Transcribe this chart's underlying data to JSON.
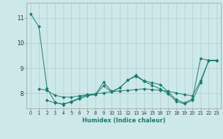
{
  "xlabel": "Humidex (Indice chaleur)",
  "bg_color": "#cce8e8",
  "grid_color": "#b0cccc",
  "line_color": "#1a7a6e",
  "xlim": [
    -0.5,
    23.5
  ],
  "ylim": [
    7.4,
    11.6
  ],
  "yticks": [
    8,
    9,
    10,
    11
  ],
  "xticks": [
    0,
    1,
    2,
    3,
    4,
    5,
    6,
    7,
    8,
    9,
    10,
    11,
    12,
    13,
    14,
    15,
    16,
    17,
    18,
    19,
    20,
    21,
    22,
    23
  ],
  "series": [
    {
      "x": [
        0,
        1,
        2,
        3,
        4,
        5,
        6,
        7,
        8,
        9,
        10,
        11,
        12,
        13,
        14,
        15,
        16,
        17,
        18,
        19,
        20,
        21,
        22,
        23
      ],
      "y": [
        11.15,
        10.65,
        8.2,
        7.65,
        7.55,
        7.68,
        7.82,
        7.95,
        7.95,
        8.45,
        8.08,
        8.22,
        8.52,
        8.72,
        8.5,
        8.42,
        8.35,
        8.05,
        7.75,
        7.62,
        7.78,
        9.38,
        9.32,
        9.32
      ]
    },
    {
      "x": [
        1,
        2,
        3,
        4,
        5,
        6,
        7,
        8,
        9,
        10,
        11,
        12,
        13,
        14,
        15,
        16,
        17,
        18,
        19,
        20,
        21,
        22,
        23
      ],
      "y": [
        8.18,
        8.12,
        7.92,
        7.85,
        7.85,
        7.9,
        7.95,
        7.98,
        8.02,
        8.06,
        8.1,
        8.12,
        8.15,
        8.18,
        8.15,
        8.12,
        8.08,
        8.02,
        7.95,
        7.9,
        8.5,
        9.3,
        9.3
      ]
    },
    {
      "x": [
        2,
        3,
        4,
        5,
        6,
        7,
        8,
        9,
        10,
        11,
        12,
        13,
        14,
        15,
        16,
        17,
        18,
        19,
        20,
        21,
        22,
        23
      ],
      "y": [
        7.72,
        7.62,
        7.58,
        7.65,
        7.78,
        7.9,
        7.95,
        8.3,
        8.05,
        8.22,
        8.52,
        8.68,
        8.48,
        8.32,
        8.18,
        7.98,
        7.68,
        7.58,
        7.72,
        8.42,
        9.3,
        9.3
      ]
    }
  ]
}
